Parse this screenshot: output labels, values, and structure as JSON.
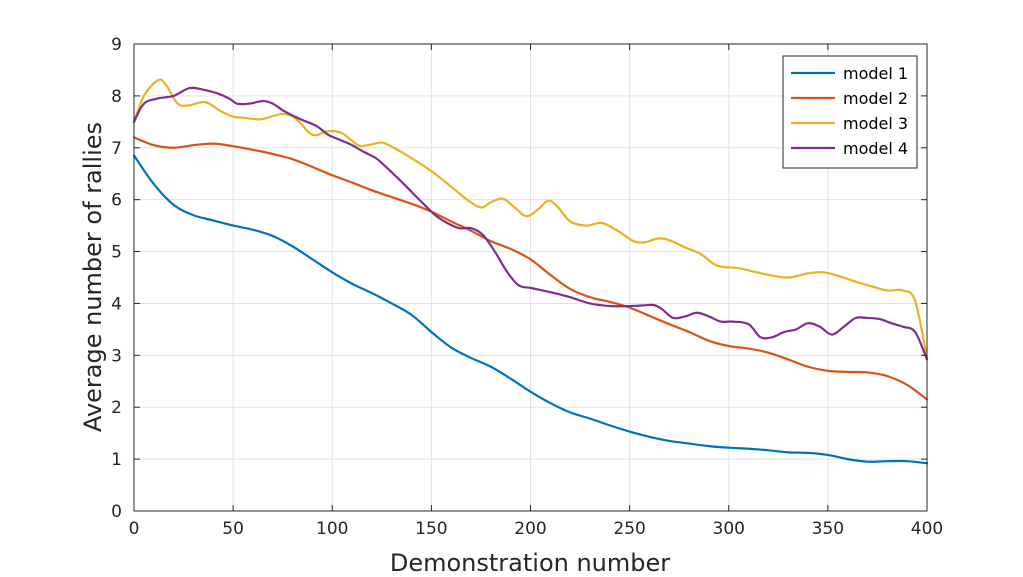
{
  "chart_data": {
    "type": "line",
    "xlabel": "Demonstration number",
    "ylabel": "Average number of rallies",
    "xlim": [
      0,
      400
    ],
    "ylim": [
      0,
      9
    ],
    "xticks": [
      0,
      50,
      100,
      150,
      200,
      250,
      300,
      350,
      400
    ],
    "yticks": [
      0,
      1,
      2,
      3,
      4,
      5,
      6,
      7,
      8,
      9
    ],
    "grid": true,
    "legend_position": "top-right",
    "series": [
      {
        "name": "model 1",
        "color": "#0072bd",
        "points": [
          [
            0,
            6.85
          ],
          [
            10,
            6.3
          ],
          [
            20,
            5.9
          ],
          [
            30,
            5.7
          ],
          [
            40,
            5.6
          ],
          [
            50,
            5.5
          ],
          [
            60,
            5.42
          ],
          [
            70,
            5.3
          ],
          [
            80,
            5.1
          ],
          [
            90,
            4.85
          ],
          [
            100,
            4.6
          ],
          [
            110,
            4.38
          ],
          [
            120,
            4.2
          ],
          [
            130,
            4.0
          ],
          [
            140,
            3.78
          ],
          [
            150,
            3.45
          ],
          [
            160,
            3.15
          ],
          [
            170,
            2.95
          ],
          [
            180,
            2.78
          ],
          [
            190,
            2.55
          ],
          [
            200,
            2.3
          ],
          [
            210,
            2.08
          ],
          [
            220,
            1.9
          ],
          [
            230,
            1.78
          ],
          [
            240,
            1.65
          ],
          [
            250,
            1.53
          ],
          [
            260,
            1.43
          ],
          [
            270,
            1.35
          ],
          [
            280,
            1.3
          ],
          [
            290,
            1.25
          ],
          [
            300,
            1.22
          ],
          [
            310,
            1.2
          ],
          [
            320,
            1.17
          ],
          [
            330,
            1.13
          ],
          [
            340,
            1.12
          ],
          [
            350,
            1.08
          ],
          [
            360,
            1.0
          ],
          [
            370,
            0.95
          ],
          [
            380,
            0.96
          ],
          [
            390,
            0.96
          ],
          [
            400,
            0.92
          ]
        ]
      },
      {
        "name": "model 2",
        "color": "#d95319",
        "points": [
          [
            0,
            7.2
          ],
          [
            10,
            7.05
          ],
          [
            20,
            7.0
          ],
          [
            30,
            7.05
          ],
          [
            40,
            7.08
          ],
          [
            50,
            7.03
          ],
          [
            60,
            6.96
          ],
          [
            70,
            6.88
          ],
          [
            80,
            6.78
          ],
          [
            90,
            6.63
          ],
          [
            100,
            6.47
          ],
          [
            110,
            6.33
          ],
          [
            120,
            6.18
          ],
          [
            130,
            6.05
          ],
          [
            140,
            5.92
          ],
          [
            150,
            5.77
          ],
          [
            160,
            5.58
          ],
          [
            170,
            5.4
          ],
          [
            180,
            5.2
          ],
          [
            190,
            5.05
          ],
          [
            200,
            4.85
          ],
          [
            210,
            4.55
          ],
          [
            220,
            4.28
          ],
          [
            230,
            4.12
          ],
          [
            240,
            4.03
          ],
          [
            250,
            3.92
          ],
          [
            260,
            3.76
          ],
          [
            270,
            3.6
          ],
          [
            280,
            3.45
          ],
          [
            290,
            3.28
          ],
          [
            300,
            3.18
          ],
          [
            310,
            3.13
          ],
          [
            320,
            3.05
          ],
          [
            330,
            2.92
          ],
          [
            340,
            2.78
          ],
          [
            350,
            2.7
          ],
          [
            360,
            2.68
          ],
          [
            370,
            2.67
          ],
          [
            380,
            2.6
          ],
          [
            390,
            2.43
          ],
          [
            400,
            2.15
          ]
        ]
      },
      {
        "name": "model 3",
        "color": "#edb120",
        "points": [
          [
            0,
            7.5
          ],
          [
            5,
            8.0
          ],
          [
            12,
            8.3
          ],
          [
            16,
            8.22
          ],
          [
            22,
            7.85
          ],
          [
            28,
            7.82
          ],
          [
            36,
            7.88
          ],
          [
            44,
            7.7
          ],
          [
            50,
            7.6
          ],
          [
            55,
            7.58
          ],
          [
            64,
            7.55
          ],
          [
            75,
            7.65
          ],
          [
            82,
            7.55
          ],
          [
            90,
            7.25
          ],
          [
            98,
            7.32
          ],
          [
            105,
            7.28
          ],
          [
            113,
            7.05
          ],
          [
            118,
            7.05
          ],
          [
            125,
            7.1
          ],
          [
            131,
            7.0
          ],
          [
            140,
            6.8
          ],
          [
            150,
            6.55
          ],
          [
            160,
            6.25
          ],
          [
            168,
            6.0
          ],
          [
            175,
            5.85
          ],
          [
            180,
            5.95
          ],
          [
            186,
            6.02
          ],
          [
            192,
            5.85
          ],
          [
            198,
            5.68
          ],
          [
            204,
            5.82
          ],
          [
            209,
            5.98
          ],
          [
            214,
            5.85
          ],
          [
            220,
            5.58
          ],
          [
            228,
            5.5
          ],
          [
            236,
            5.55
          ],
          [
            244,
            5.4
          ],
          [
            252,
            5.2
          ],
          [
            258,
            5.18
          ],
          [
            264,
            5.25
          ],
          [
            270,
            5.22
          ],
          [
            278,
            5.08
          ],
          [
            286,
            4.95
          ],
          [
            294,
            4.73
          ],
          [
            305,
            4.68
          ],
          [
            312,
            4.62
          ],
          [
            320,
            4.55
          ],
          [
            330,
            4.5
          ],
          [
            340,
            4.58
          ],
          [
            348,
            4.6
          ],
          [
            356,
            4.52
          ],
          [
            364,
            4.42
          ],
          [
            372,
            4.33
          ],
          [
            380,
            4.25
          ],
          [
            388,
            4.25
          ],
          [
            394,
            4.05
          ],
          [
            400,
            2.95
          ]
        ]
      },
      {
        "name": "model 4",
        "color": "#7e2f8e",
        "points": [
          [
            0,
            7.5
          ],
          [
            5,
            7.85
          ],
          [
            12,
            7.95
          ],
          [
            20,
            8.0
          ],
          [
            28,
            8.15
          ],
          [
            35,
            8.12
          ],
          [
            42,
            8.05
          ],
          [
            48,
            7.95
          ],
          [
            52,
            7.85
          ],
          [
            58,
            7.85
          ],
          [
            65,
            7.9
          ],
          [
            70,
            7.85
          ],
          [
            76,
            7.7
          ],
          [
            84,
            7.55
          ],
          [
            92,
            7.42
          ],
          [
            98,
            7.25
          ],
          [
            104,
            7.15
          ],
          [
            110,
            7.05
          ],
          [
            116,
            6.92
          ],
          [
            122,
            6.8
          ],
          [
            128,
            6.6
          ],
          [
            134,
            6.38
          ],
          [
            140,
            6.15
          ],
          [
            146,
            5.92
          ],
          [
            152,
            5.7
          ],
          [
            158,
            5.55
          ],
          [
            164,
            5.45
          ],
          [
            170,
            5.45
          ],
          [
            176,
            5.32
          ],
          [
            182,
            5.0
          ],
          [
            188,
            4.62
          ],
          [
            194,
            4.35
          ],
          [
            200,
            4.3
          ],
          [
            206,
            4.25
          ],
          [
            212,
            4.2
          ],
          [
            220,
            4.12
          ],
          [
            230,
            4.0
          ],
          [
            240,
            3.95
          ],
          [
            250,
            3.95
          ],
          [
            256,
            3.96
          ],
          [
            262,
            3.97
          ],
          [
            266,
            3.9
          ],
          [
            272,
            3.72
          ],
          [
            278,
            3.75
          ],
          [
            284,
            3.82
          ],
          [
            290,
            3.75
          ],
          [
            296,
            3.65
          ],
          [
            302,
            3.65
          ],
          [
            310,
            3.6
          ],
          [
            316,
            3.35
          ],
          [
            322,
            3.35
          ],
          [
            328,
            3.45
          ],
          [
            334,
            3.5
          ],
          [
            340,
            3.62
          ],
          [
            346,
            3.55
          ],
          [
            352,
            3.4
          ],
          [
            358,
            3.55
          ],
          [
            364,
            3.72
          ],
          [
            370,
            3.72
          ],
          [
            376,
            3.7
          ],
          [
            382,
            3.62
          ],
          [
            388,
            3.55
          ],
          [
            394,
            3.45
          ],
          [
            400,
            2.92
          ]
        ]
      }
    ]
  }
}
